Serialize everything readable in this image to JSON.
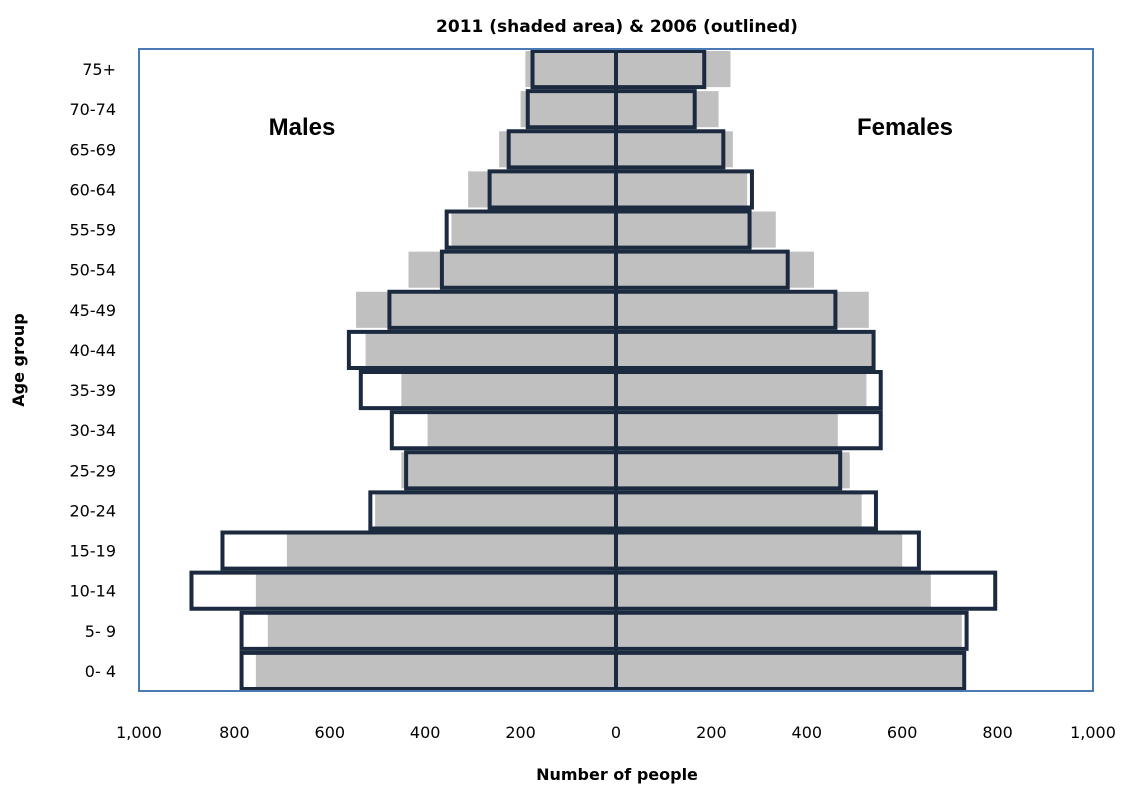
{
  "chart_data": {
    "type": "bar",
    "orientation": "horizontal",
    "title": "2011 (shaded area) & 2006 (outlined)",
    "xlabel": "Number of people",
    "ylabel": "Age group",
    "xlim": [
      -1000,
      1000
    ],
    "x_ticks": [
      -1000,
      -800,
      -600,
      -400,
      -200,
      0,
      200,
      400,
      600,
      800,
      1000
    ],
    "x_tick_labels": [
      "1,000",
      "800",
      "600",
      "400",
      "200",
      "0",
      "200",
      "400",
      "600",
      "800",
      "1,000"
    ],
    "categories": [
      "0- 4",
      "5- 9",
      "10-14",
      "15-19",
      "20-24",
      "25-29",
      "30-34",
      "35-39",
      "40-44",
      "45-49",
      "50-54",
      "55-59",
      "60-64",
      "65-69",
      "70-74",
      "75+"
    ],
    "annotations": {
      "left": "Males",
      "right": "Females"
    },
    "grid": false,
    "colors": {
      "shaded": "#c0c0c0",
      "outline": "#1c2a40",
      "frame": "#4a7ab5"
    },
    "series": [
      {
        "name": "Males 2011 (shaded)",
        "values": [
          755,
          730,
          755,
          690,
          505,
          450,
          395,
          450,
          525,
          545,
          435,
          345,
          310,
          245,
          200,
          190
        ]
      },
      {
        "name": "Females 2011 (shaded)",
        "values": [
          730,
          725,
          660,
          600,
          515,
          490,
          465,
          525,
          540,
          530,
          415,
          335,
          275,
          245,
          215,
          240
        ]
      },
      {
        "name": "Males 2006 (outlined)",
        "values": [
          785,
          785,
          890,
          825,
          515,
          440,
          470,
          535,
          560,
          475,
          365,
          355,
          265,
          225,
          185,
          175
        ]
      },
      {
        "name": "Females 2006 (outlined)",
        "values": [
          730,
          735,
          795,
          635,
          545,
          470,
          555,
          555,
          540,
          460,
          360,
          280,
          285,
          225,
          165,
          185
        ]
      }
    ]
  }
}
